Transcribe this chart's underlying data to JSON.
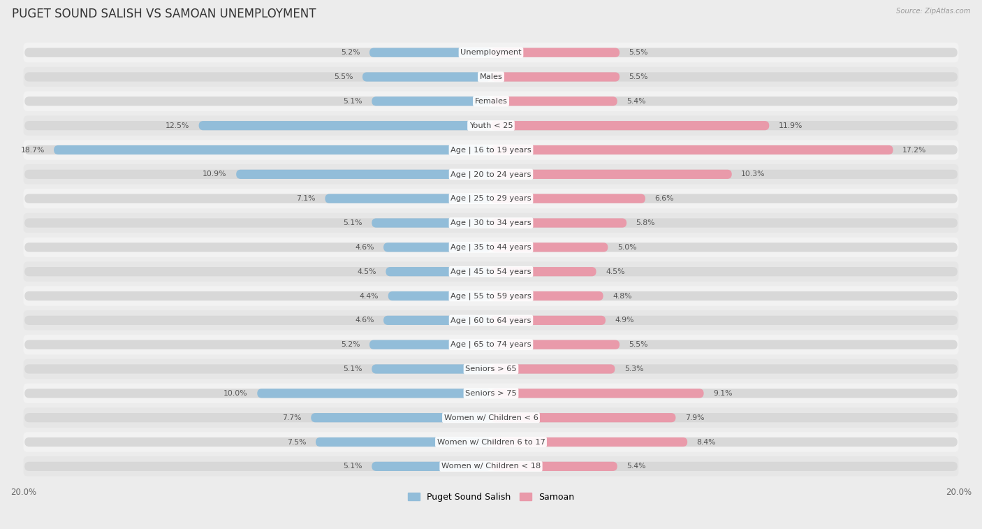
{
  "title": "PUGET SOUND SALISH VS SAMOAN UNEMPLOYMENT",
  "source": "Source: ZipAtlas.com",
  "categories": [
    "Unemployment",
    "Males",
    "Females",
    "Youth < 25",
    "Age | 16 to 19 years",
    "Age | 20 to 24 years",
    "Age | 25 to 29 years",
    "Age | 30 to 34 years",
    "Age | 35 to 44 years",
    "Age | 45 to 54 years",
    "Age | 55 to 59 years",
    "Age | 60 to 64 years",
    "Age | 65 to 74 years",
    "Seniors > 65",
    "Seniors > 75",
    "Women w/ Children < 6",
    "Women w/ Children 6 to 17",
    "Women w/ Children < 18"
  ],
  "left_values": [
    5.2,
    5.5,
    5.1,
    12.5,
    18.7,
    10.9,
    7.1,
    5.1,
    4.6,
    4.5,
    4.4,
    4.6,
    5.2,
    5.1,
    10.0,
    7.7,
    7.5,
    5.1
  ],
  "right_values": [
    5.5,
    5.5,
    5.4,
    11.9,
    17.2,
    10.3,
    6.6,
    5.8,
    5.0,
    4.5,
    4.8,
    4.9,
    5.5,
    5.3,
    9.1,
    7.9,
    8.4,
    5.4
  ],
  "left_color": "#92bdd9",
  "right_color": "#e99aaa",
  "row_color_even": "#f2f2f2",
  "row_color_odd": "#e6e6e6",
  "bar_track_color": "#d8d8d8",
  "left_label": "Puget Sound Salish",
  "right_label": "Samoan",
  "xlim": 20.0,
  "bg_color": "#ececec",
  "title_fontsize": 12,
  "label_fontsize": 8.2,
  "value_fontsize": 7.8,
  "axis_tick_fontsize": 8.5
}
